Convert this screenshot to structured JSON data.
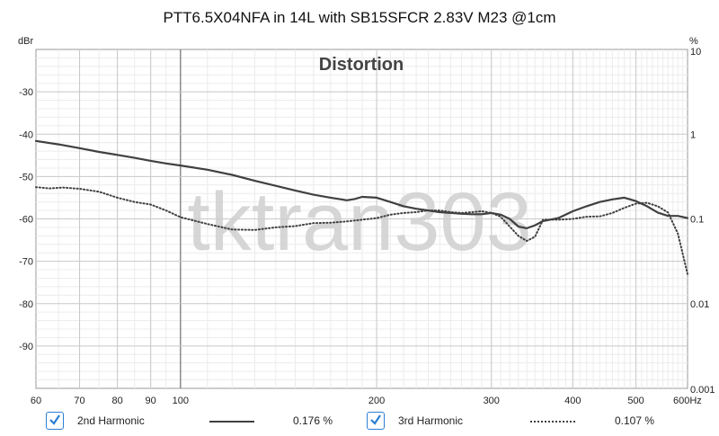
{
  "chart_data": {
    "type": "line",
    "title": "PTT6.5X04NFA in 14L with SB15SFCR 2.83V M23 @1cm",
    "annotation": "Distortion",
    "watermark": "tktran303",
    "x_axis": {
      "unit": "Hz",
      "scale": "log",
      "range": [
        60,
        600
      ],
      "tick_labels": [
        "60",
        "70",
        "80",
        "90",
        "100",
        "200",
        "300",
        "400",
        "500",
        "600Hz"
      ],
      "tick_values": [
        60,
        70,
        80,
        90,
        100,
        200,
        300,
        400,
        500,
        600
      ]
    },
    "y_left": {
      "unit": "dBr",
      "range": [
        -100,
        -20
      ],
      "tick_labels": [
        "-30",
        "-40",
        "-50",
        "-60",
        "-70",
        "-80",
        "-90"
      ],
      "tick_values": [
        -30,
        -40,
        -50,
        -60,
        -70,
        -80,
        -90
      ]
    },
    "y_right": {
      "unit": "%",
      "scale": "log",
      "range": [
        0.001,
        10
      ],
      "tick_labels": [
        "10",
        "1",
        "0.1",
        "0.01",
        "0.001"
      ],
      "tick_values": [
        10,
        1,
        0.1,
        0.01,
        0.001
      ]
    },
    "grid": true,
    "series": [
      {
        "name": "2nd Harmonic",
        "value_text": "0.176 %",
        "style": "solid",
        "color": "#404040",
        "x": [
          60,
          65,
          70,
          75,
          80,
          85,
          90,
          95,
          100,
          110,
          120,
          130,
          140,
          150,
          160,
          170,
          180,
          185,
          190,
          200,
          210,
          220,
          230,
          240,
          250,
          260,
          270,
          280,
          290,
          300,
          310,
          320,
          330,
          340,
          350,
          360,
          380,
          400,
          420,
          440,
          460,
          480,
          500,
          520,
          540,
          560,
          580,
          600
        ],
        "y": [
          -41.6,
          -42.4,
          -43.3,
          -44.2,
          -44.9,
          -45.6,
          -46.3,
          -46.9,
          -47.4,
          -48.4,
          -49.6,
          -51.0,
          -52.2,
          -53.3,
          -54.3,
          -55.0,
          -55.6,
          -55.3,
          -54.8,
          -55.0,
          -56.0,
          -57.0,
          -57.6,
          -58.0,
          -58.4,
          -58.6,
          -58.8,
          -58.9,
          -58.9,
          -58.6,
          -59.0,
          -60.0,
          -61.8,
          -62.2,
          -61.5,
          -60.5,
          -59.8,
          -58.2,
          -57.0,
          -56.0,
          -55.4,
          -55.0,
          -55.8,
          -57.0,
          -58.5,
          -59.3,
          -59.3,
          -59.8
        ]
      },
      {
        "name": "3rd Harmonic",
        "value_text": "0.107 %",
        "style": "dotted",
        "color": "#404040",
        "x": [
          60,
          63,
          66,
          70,
          75,
          80,
          85,
          90,
          95,
          100,
          110,
          120,
          130,
          140,
          150,
          160,
          170,
          180,
          190,
          200,
          210,
          220,
          230,
          240,
          250,
          260,
          270,
          280,
          290,
          300,
          310,
          320,
          330,
          340,
          350,
          360,
          380,
          400,
          420,
          440,
          460,
          480,
          500,
          520,
          540,
          560,
          580,
          600
        ],
        "y": [
          -52.5,
          -52.8,
          -52.6,
          -52.9,
          -53.6,
          -55.0,
          -56.0,
          -56.6,
          -58.0,
          -59.6,
          -61.2,
          -62.5,
          -62.6,
          -62.0,
          -61.7,
          -61.0,
          -60.9,
          -60.6,
          -60.2,
          -59.8,
          -59.0,
          -58.6,
          -58.4,
          -58.0,
          -58.0,
          -58.4,
          -58.6,
          -58.4,
          -58.2,
          -58.6,
          -59.5,
          -61.8,
          -64.0,
          -65.2,
          -64.2,
          -60.2,
          -60.2,
          -60.0,
          -59.5,
          -59.4,
          -58.6,
          -57.4,
          -56.4,
          -56.2,
          -57.0,
          -58.5,
          -63.5,
          -73.0
        ]
      }
    ]
  }
}
